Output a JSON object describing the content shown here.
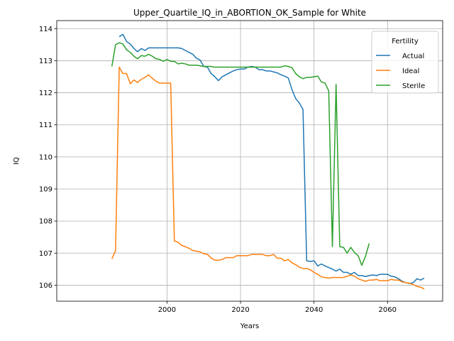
{
  "chart_data": {
    "type": "line",
    "title": "Upper_Quartile_IQ_in_ABORTION_OK_Sample for White",
    "xlabel": "Years",
    "ylabel": "IQ",
    "xlim": [
      1970,
      2075
    ],
    "ylim": [
      105.5,
      114.25
    ],
    "xticks": [
      2000,
      2020,
      2040,
      2060
    ],
    "yticks": [
      106,
      107,
      108,
      109,
      110,
      111,
      112,
      113,
      114
    ],
    "grid": true,
    "legend": {
      "title": "Fertility",
      "placement": "top-right"
    },
    "series": [
      {
        "name": "Actual",
        "color": "#1f77b4",
        "x": [
          1987,
          1988,
          1989,
          1990,
          1991,
          1992,
          1993,
          1994,
          1995,
          1996,
          1997,
          1998,
          1999,
          2000,
          2001,
          2002,
          2003,
          2004,
          2005,
          2006,
          2007,
          2008,
          2009,
          2010,
          2011,
          2012,
          2013,
          2014,
          2015,
          2016,
          2017,
          2018,
          2019,
          2020,
          2021,
          2022,
          2023,
          2024,
          2025,
          2026,
          2027,
          2028,
          2029,
          2030,
          2031,
          2032,
          2033,
          2034,
          2035,
          2036,
          2037,
          2038,
          2039,
          2040,
          2041,
          2042,
          2043,
          2044,
          2045,
          2046,
          2047,
          2048,
          2049,
          2050,
          2051,
          2052,
          2053,
          2054,
          2055,
          2056,
          2057,
          2058,
          2059,
          2060,
          2061,
          2062,
          2063,
          2064,
          2065,
          2066,
          2067,
          2068,
          2069,
          2070
        ],
        "values": [
          113.75,
          113.82,
          113.6,
          113.52,
          113.38,
          113.28,
          113.38,
          113.32,
          113.4,
          113.4,
          113.4,
          113.4,
          113.4,
          113.4,
          113.4,
          113.4,
          113.4,
          113.38,
          113.32,
          113.26,
          113.2,
          113.08,
          113.02,
          112.82,
          112.8,
          112.6,
          112.5,
          112.38,
          112.5,
          112.56,
          112.62,
          112.68,
          112.72,
          112.74,
          112.74,
          112.8,
          112.82,
          112.8,
          112.72,
          112.72,
          112.68,
          112.68,
          112.65,
          112.62,
          112.56,
          112.52,
          112.46,
          112.1,
          111.82,
          111.68,
          111.48,
          106.76,
          106.74,
          106.76,
          106.6,
          106.66,
          106.6,
          106.55,
          106.5,
          106.44,
          106.5,
          106.4,
          106.4,
          106.34,
          106.4,
          106.3,
          106.3,
          106.27,
          106.3,
          106.32,
          106.3,
          106.34,
          106.34,
          106.34,
          106.28,
          106.26,
          106.2,
          106.12,
          106.08,
          106.05,
          106.08,
          106.2,
          106.16,
          106.22
        ]
      },
      {
        "name": "Ideal",
        "color": "#ff7f0e",
        "x": [
          1985,
          1986,
          1987,
          1988,
          1989,
          1990,
          1991,
          1992,
          1993,
          1994,
          1995,
          1996,
          1997,
          1998,
          1999,
          2000,
          2001,
          2002,
          2003,
          2004,
          2005,
          2006,
          2007,
          2008,
          2009,
          2010,
          2011,
          2012,
          2013,
          2014,
          2015,
          2016,
          2017,
          2018,
          2019,
          2020,
          2021,
          2022,
          2023,
          2024,
          2025,
          2026,
          2027,
          2028,
          2029,
          2030,
          2031,
          2032,
          2033,
          2034,
          2035,
          2036,
          2037,
          2038,
          2039,
          2040,
          2041,
          2042,
          2043,
          2044,
          2045,
          2046,
          2047,
          2048,
          2049,
          2050,
          2051,
          2052,
          2053,
          2054,
          2055,
          2056,
          2057,
          2058,
          2059,
          2060,
          2061,
          2062,
          2063,
          2064,
          2065,
          2066,
          2067,
          2068,
          2069,
          2070
        ],
        "values": [
          106.82,
          107.08,
          112.8,
          112.6,
          112.6,
          112.28,
          112.4,
          112.32,
          112.42,
          112.48,
          112.56,
          112.45,
          112.36,
          112.3,
          112.3,
          112.3,
          112.3,
          107.38,
          107.34,
          107.24,
          107.2,
          107.15,
          107.08,
          107.06,
          107.04,
          106.98,
          106.96,
          106.85,
          106.78,
          106.78,
          106.8,
          106.86,
          106.86,
          106.86,
          106.92,
          106.92,
          106.92,
          106.92,
          106.96,
          106.96,
          106.96,
          106.96,
          106.92,
          106.92,
          106.96,
          106.84,
          106.84,
          106.76,
          106.8,
          106.7,
          106.64,
          106.56,
          106.52,
          106.52,
          106.48,
          106.4,
          106.34,
          106.26,
          106.24,
          106.22,
          106.24,
          106.24,
          106.24,
          106.24,
          106.28,
          106.32,
          106.28,
          106.2,
          106.16,
          106.12,
          106.16,
          106.16,
          106.18,
          106.14,
          106.14,
          106.14,
          106.18,
          106.16,
          106.16,
          106.1,
          106.08,
          106.06,
          106.02,
          105.96,
          105.94,
          105.88
        ]
      },
      {
        "name": "Sterile",
        "color": "#2ca02c",
        "x": [
          1985,
          1986,
          1987,
          1988,
          1989,
          1990,
          1991,
          1992,
          1993,
          1994,
          1995,
          1996,
          1997,
          1998,
          1999,
          2000,
          2001,
          2002,
          2003,
          2004,
          2005,
          2006,
          2007,
          2008,
          2009,
          2010,
          2011,
          2012,
          2013,
          2014,
          2015,
          2016,
          2017,
          2018,
          2019,
          2020,
          2021,
          2022,
          2023,
          2024,
          2025,
          2026,
          2027,
          2028,
          2029,
          2030,
          2031,
          2032,
          2033,
          2034,
          2035,
          2036,
          2037,
          2038,
          2039,
          2040,
          2041,
          2042,
          2043,
          2044,
          2045,
          2046,
          2047,
          2048,
          2049,
          2050,
          2051,
          2052,
          2053,
          2054,
          2055
        ],
        "values": [
          112.82,
          113.5,
          113.56,
          113.52,
          113.34,
          113.26,
          113.14,
          113.06,
          113.16,
          113.14,
          113.2,
          113.14,
          113.06,
          113.04,
          112.98,
          113.04,
          112.98,
          112.98,
          112.9,
          112.92,
          112.9,
          112.86,
          112.86,
          112.86,
          112.84,
          112.82,
          112.82,
          112.82,
          112.8,
          112.8,
          112.8,
          112.8,
          112.8,
          112.8,
          112.8,
          112.8,
          112.8,
          112.8,
          112.8,
          112.8,
          112.8,
          112.8,
          112.8,
          112.8,
          112.8,
          112.8,
          112.8,
          112.84,
          112.82,
          112.78,
          112.6,
          112.5,
          112.44,
          112.48,
          112.48,
          112.5,
          112.52,
          112.34,
          112.3,
          112.06,
          107.2,
          112.26,
          107.2,
          107.18,
          107.0,
          107.18,
          107.02,
          106.92,
          106.62,
          106.9,
          107.3
        ]
      }
    ]
  }
}
